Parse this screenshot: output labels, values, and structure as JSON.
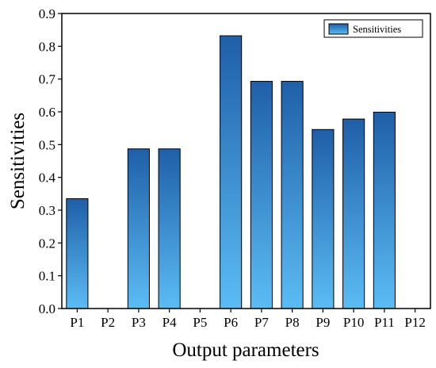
{
  "chart_data": {
    "type": "bar",
    "categories": [
      "P1",
      "P2",
      "P3",
      "P4",
      "P5",
      "P6",
      "P7",
      "P8",
      "P9",
      "P10",
      "P11",
      "P12"
    ],
    "series": [
      {
        "name": "Sensitivities",
        "values": [
          0.335,
          0,
          0.487,
          0.487,
          0,
          0.832,
          0.693,
          0.693,
          0.546,
          0.578,
          0.599,
          0
        ]
      }
    ],
    "xlabel": "Output parameters",
    "ylabel": "Sensitivities",
    "ylim": [
      0,
      0.9
    ],
    "yticks": [
      "0.0",
      "0.1",
      "0.2",
      "0.3",
      "0.4",
      "0.5",
      "0.6",
      "0.7",
      "0.8",
      "0.9"
    ],
    "legend_position": "top-right",
    "grid": false,
    "colors": {
      "bar_top": "#1f5fa8",
      "bar_bottom": "#5bbcf4",
      "bar_edge": "#000000"
    }
  }
}
